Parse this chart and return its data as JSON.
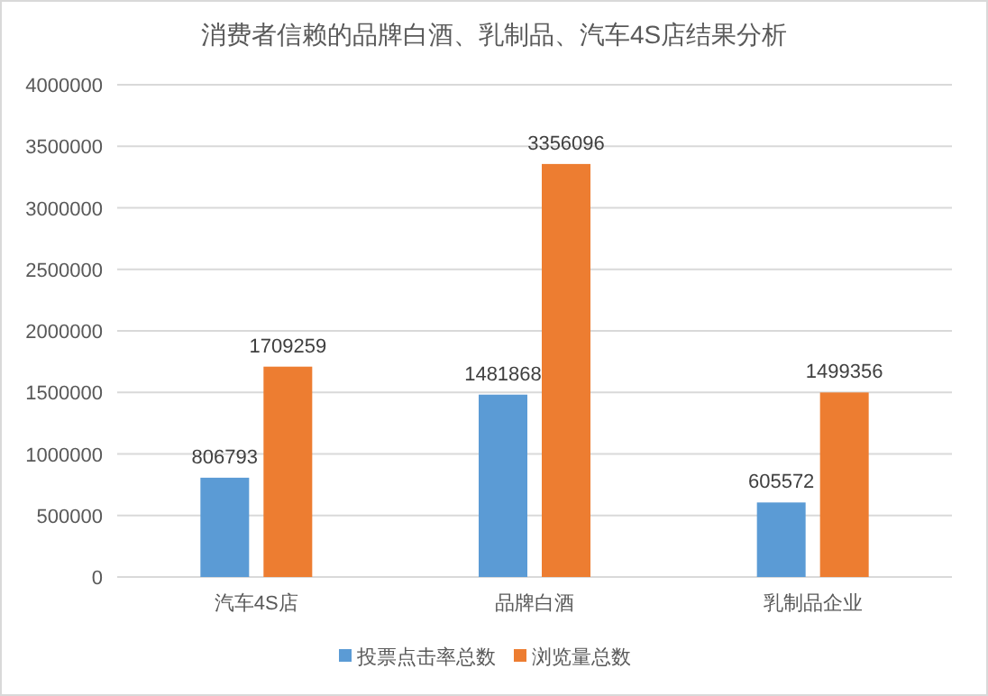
{
  "chart_data": {
    "type": "bar",
    "title": "消费者信赖的品牌白酒、乳制品、汽车4S店结果分析",
    "categories": [
      "汽车4S店",
      "品牌白酒",
      "乳制品企业"
    ],
    "series": [
      {
        "name": "投票点击率总数",
        "color": "#5b9bd5",
        "values": [
          806793,
          1481868,
          605572
        ]
      },
      {
        "name": "浏览量总数",
        "color": "#ed7d31",
        "values": [
          1709259,
          3356096,
          1499356
        ]
      }
    ],
    "ylim": [
      0,
      4000000
    ],
    "yticks": [
      0,
      500000,
      1000000,
      1500000,
      2000000,
      2500000,
      3000000,
      3500000,
      4000000
    ],
    "grid": "y",
    "legend": "bottom",
    "data_labels": true
  }
}
